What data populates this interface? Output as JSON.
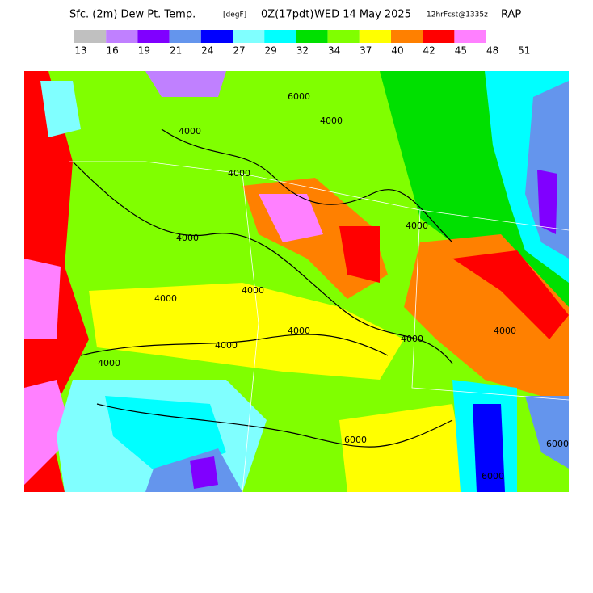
{
  "header": {
    "field": "Sfc. (2m) Dew Pt. Temp.",
    "units": "[degF]",
    "valid": "0Z(17pdt)",
    "date": "WED 14 May 2025",
    "forecast": "12hrFcst@1335z",
    "model": "RAP"
  },
  "colorbar": {
    "colors": [
      "#c0c0c0",
      "#c080ff",
      "#8000ff",
      "#6495ed",
      "#0000ff",
      "#80ffff",
      "#00ffff",
      "#00e000",
      "#80ff00",
      "#ffff00",
      "#ff8000",
      "#ff0000",
      "#ff80ff"
    ],
    "labels": [
      "13",
      "16",
      "19",
      "21",
      "24",
      "27",
      "29",
      "32",
      "34",
      "37",
      "40",
      "42",
      "45",
      "48",
      "51"
    ]
  },
  "map": {
    "contour_labels": [
      "4000",
      "4000",
      "4000",
      "4000",
      "4000",
      "4000",
      "4000",
      "4000",
      "4000",
      "4000",
      "4000",
      "4000",
      "6000",
      "6000",
      "6000",
      "6000"
    ]
  }
}
